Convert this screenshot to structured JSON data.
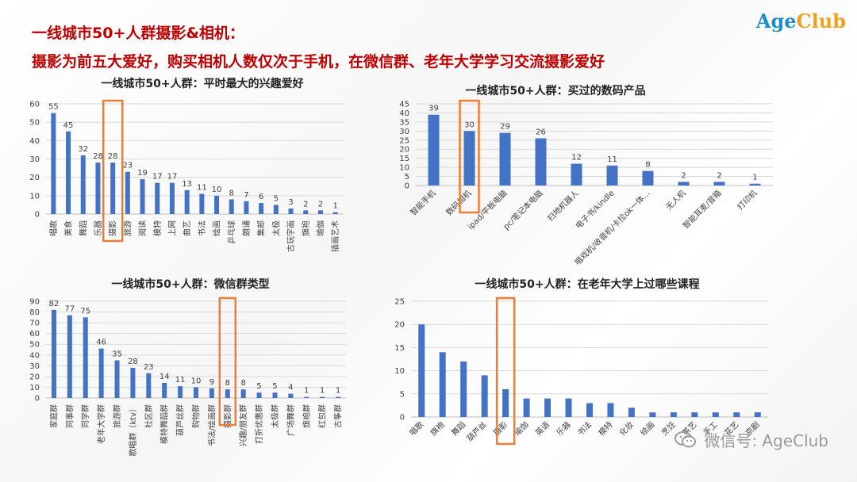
{
  "header": {
    "title_line1": "一线城市50+人群摄影&相机：",
    "title_line2": "摄影为前五大爱好，购买相机人数仅次于手机，在微信群、老年大学学习交流摄影爱好",
    "logo_part1": "Age",
    "logo_part2": "Club"
  },
  "watermark": {
    "text": "微信号: AgeClub"
  },
  "colors": {
    "bar": "#4472c4",
    "highlight": "#ed7d31",
    "title": "#c00000",
    "grid": "#d9d9d9"
  },
  "chart_data": [
    {
      "id": "hobbies",
      "type": "bar",
      "title": "一线城市50+人群：平时最大的兴趣爱好",
      "categories": [
        "唱歌",
        "美食",
        "舞蹈",
        "乐器",
        "摄影",
        "旅游",
        "阅读",
        "模特",
        "上网",
        "曲艺",
        "书法",
        "绘画",
        "乒乓球",
        "朗诵",
        "集邮",
        "太极",
        "古玩字画",
        "旗袍",
        "瑜伽",
        "插画艺术"
      ],
      "values": [
        55,
        45,
        32,
        28,
        28,
        23,
        19,
        17,
        17,
        13,
        11,
        10,
        8,
        7,
        6,
        5,
        3,
        2,
        2,
        1
      ],
      "yticks": [
        0,
        10,
        20,
        30,
        40,
        50,
        60
      ],
      "ylim": [
        0,
        60
      ],
      "highlight_index": 4,
      "grid": true
    },
    {
      "id": "digital",
      "type": "bar",
      "title": "一线城市50+人群：买过的数码产品",
      "categories": [
        "智能手机",
        "数码相机",
        "ipad/平板电脑",
        "pc/笔记本电脑",
        "扫地机器人",
        "电子书/kindle",
        "唱戏机/收音机/卡拉ok一体…",
        "无人机",
        "智能耳麦/音箱",
        "打印机"
      ],
      "values": [
        39,
        30,
        29,
        26,
        12,
        11,
        8,
        2,
        2,
        1
      ],
      "yticks": [
        0,
        5,
        10,
        15,
        20,
        25,
        30,
        35,
        40,
        45
      ],
      "ylim": [
        0,
        45
      ],
      "highlight_index": 1,
      "grid": true
    },
    {
      "id": "wechat",
      "type": "bar",
      "title": "一线城市50+人群：微信群类型",
      "categories": [
        "家庭群",
        "同事群",
        "同学群",
        "老年大学群",
        "旅游群",
        "歌唱群（ktv）",
        "社区群",
        "模特舞蹈群",
        "葫芦丝群",
        "购物群",
        "书法/绘画群",
        "摄影群",
        "兴趣/朋友群",
        "打折优惠群",
        "太极群",
        "广场舞群",
        "旗袍群",
        "红包群",
        "古筝群"
      ],
      "values": [
        82,
        77,
        75,
        46,
        35,
        28,
        23,
        14,
        11,
        10,
        9,
        8,
        8,
        5,
        5,
        4,
        1,
        1,
        1
      ],
      "yticks": [
        0,
        10,
        20,
        30,
        40,
        50,
        60,
        70,
        80,
        90
      ],
      "ylim": [
        0,
        90
      ],
      "highlight_index": 11,
      "grid": true
    },
    {
      "id": "courses",
      "type": "bar",
      "title": "一线城市50+人群：在老年大学上过哪些课程",
      "categories": [
        "唱歌",
        "旗袍",
        "舞蹈",
        "葫芦丝",
        "摄影",
        "瑜伽",
        "英语",
        "乐器",
        "书法",
        "模特",
        "化妆",
        "绘画",
        "烹饪",
        "茶艺",
        "手工",
        "花艺",
        "京剧"
      ],
      "values": [
        20,
        14,
        12,
        9,
        6,
        4,
        4,
        4,
        3,
        3,
        2,
        1,
        1,
        1,
        1,
        1,
        1
      ],
      "yticks": [
        0,
        5,
        10,
        15,
        20,
        25
      ],
      "ylim": [
        0,
        25
      ],
      "highlight_index": 4,
      "grid": true,
      "show_value_labels": false
    }
  ]
}
